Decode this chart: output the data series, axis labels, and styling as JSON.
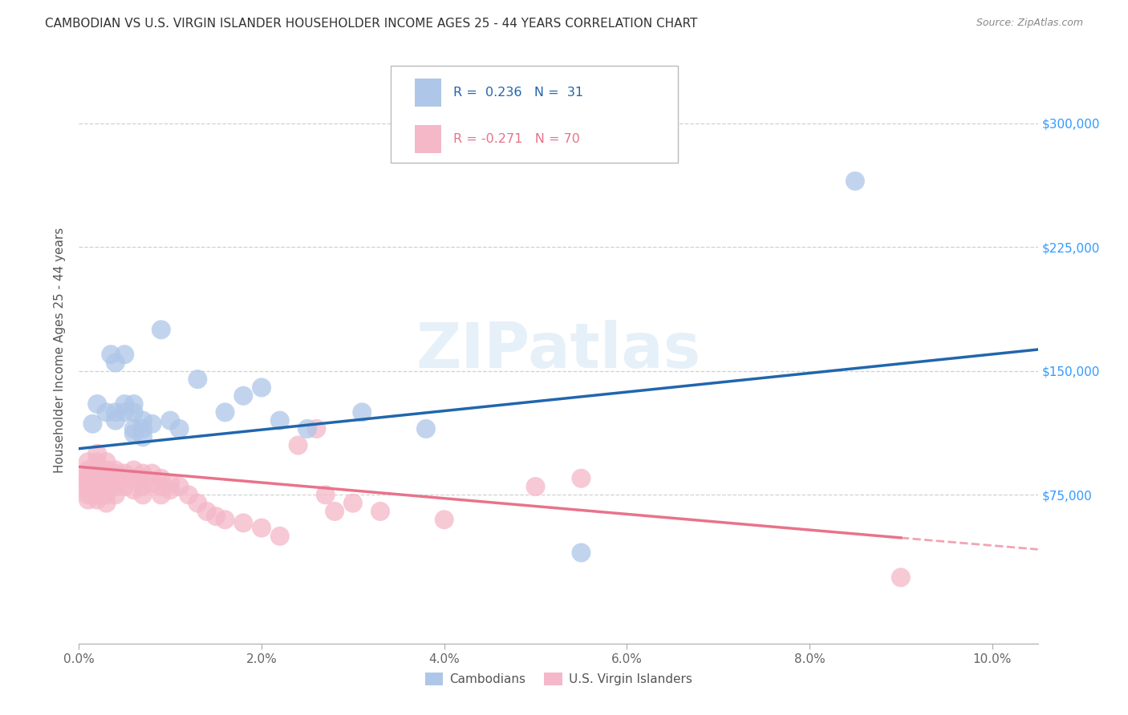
{
  "title": "CAMBODIAN VS U.S. VIRGIN ISLANDER HOUSEHOLDER INCOME AGES 25 - 44 YEARS CORRELATION CHART",
  "source": "Source: ZipAtlas.com",
  "ylabel": "Householder Income Ages 25 - 44 years",
  "xlim": [
    0.0,
    0.105
  ],
  "ylim": [
    -15000,
    340000
  ],
  "xtick_labels": [
    "0.0%",
    "2.0%",
    "4.0%",
    "6.0%",
    "8.0%",
    "10.0%"
  ],
  "xtick_values": [
    0.0,
    0.02,
    0.04,
    0.06,
    0.08,
    0.1
  ],
  "ytick_labels": [
    "$75,000",
    "$150,000",
    "$225,000",
    "$300,000"
  ],
  "ytick_values": [
    75000,
    150000,
    225000,
    300000
  ],
  "cambodian_color": "#aec6e8",
  "virgin_islander_color": "#f4b8c8",
  "trend_blue": "#2166ac",
  "trend_pink": "#e8738a",
  "watermark": "ZIPatlas",
  "background_color": "#ffffff",
  "grid_color": "#cccccc",
  "cambodian_x": [
    0.0015,
    0.002,
    0.003,
    0.0035,
    0.004,
    0.004,
    0.004,
    0.005,
    0.005,
    0.005,
    0.006,
    0.006,
    0.006,
    0.006,
    0.007,
    0.007,
    0.007,
    0.008,
    0.009,
    0.01,
    0.011,
    0.013,
    0.016,
    0.018,
    0.02,
    0.022,
    0.025,
    0.031,
    0.038,
    0.055,
    0.085
  ],
  "cambodian_y": [
    118000,
    130000,
    125000,
    160000,
    155000,
    125000,
    120000,
    160000,
    130000,
    125000,
    130000,
    125000,
    115000,
    112000,
    120000,
    115000,
    110000,
    118000,
    175000,
    120000,
    115000,
    145000,
    125000,
    135000,
    140000,
    120000,
    115000,
    125000,
    115000,
    40000,
    265000
  ],
  "virgin_islander_x": [
    0.001,
    0.001,
    0.001,
    0.001,
    0.001,
    0.001,
    0.001,
    0.001,
    0.001,
    0.001,
    0.002,
    0.002,
    0.002,
    0.002,
    0.002,
    0.002,
    0.002,
    0.002,
    0.002,
    0.002,
    0.002,
    0.003,
    0.003,
    0.003,
    0.003,
    0.003,
    0.003,
    0.003,
    0.003,
    0.004,
    0.004,
    0.004,
    0.004,
    0.004,
    0.005,
    0.005,
    0.005,
    0.006,
    0.006,
    0.006,
    0.007,
    0.007,
    0.007,
    0.007,
    0.008,
    0.008,
    0.009,
    0.009,
    0.009,
    0.01,
    0.01,
    0.011,
    0.012,
    0.013,
    0.014,
    0.015,
    0.016,
    0.018,
    0.02,
    0.022,
    0.024,
    0.026,
    0.027,
    0.028,
    0.03,
    0.033,
    0.04,
    0.05,
    0.055,
    0.09
  ],
  "virgin_islander_y": [
    95000,
    90000,
    88000,
    85000,
    85000,
    82000,
    80000,
    78000,
    75000,
    72000,
    100000,
    95000,
    92000,
    90000,
    88000,
    85000,
    82000,
    80000,
    78000,
    75000,
    72000,
    95000,
    90000,
    88000,
    85000,
    80000,
    78000,
    75000,
    70000,
    90000,
    88000,
    85000,
    80000,
    75000,
    88000,
    85000,
    80000,
    90000,
    85000,
    78000,
    88000,
    85000,
    80000,
    75000,
    88000,
    82000,
    85000,
    80000,
    75000,
    82000,
    78000,
    80000,
    75000,
    70000,
    65000,
    62000,
    60000,
    58000,
    55000,
    50000,
    105000,
    115000,
    75000,
    65000,
    70000,
    65000,
    60000,
    80000,
    85000,
    25000
  ],
  "trend_blue_x0": 0.0,
  "trend_blue_x1": 0.105,
  "trend_blue_y0": 103000,
  "trend_blue_y1": 163000,
  "trend_pink_solid_x0": 0.0,
  "trend_pink_solid_x1": 0.09,
  "trend_pink_y0": 92000,
  "trend_pink_y1": 49000,
  "trend_pink_dash_x0": 0.09,
  "trend_pink_dash_x1": 0.105,
  "trend_pink_dash_y0": 49000,
  "trend_pink_dash_y1": 42000
}
